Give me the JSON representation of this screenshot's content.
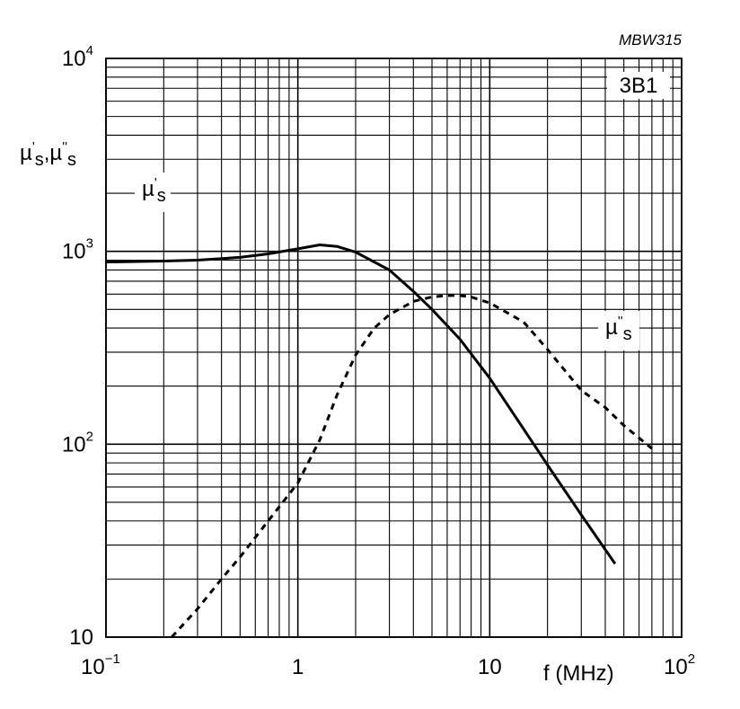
{
  "chart_data": {
    "type": "line",
    "reference": "MBW315",
    "material": "3B1",
    "xscale": "log",
    "yscale": "log",
    "xlim": [
      0.1,
      100
    ],
    "ylim": [
      10,
      10000
    ],
    "grid": true,
    "xlabel": "f  (MHz)",
    "ylabel": {
      "base": "µ",
      "sub1": "s",
      "sup1": "'",
      "sep": ",",
      "sub2": "s",
      "sup2": "''"
    },
    "x_ticks": [
      {
        "value": 0.1,
        "base": "10",
        "exp": "−1"
      },
      {
        "value": 1,
        "base": "1",
        "exp": ""
      },
      {
        "value": 10,
        "base": "10",
        "exp": ""
      },
      {
        "value": 100,
        "base": "10",
        "exp": "2"
      }
    ],
    "y_ticks": [
      {
        "value": 10,
        "base": "10",
        "exp": ""
      },
      {
        "value": 100,
        "base": "10",
        "exp": "2"
      },
      {
        "value": 1000,
        "base": "10",
        "exp": "3"
      },
      {
        "value": 10000,
        "base": "10",
        "exp": "4"
      }
    ],
    "series": [
      {
        "name": "µ's",
        "label": {
          "base": "µ",
          "sup": "'",
          "sub": "s"
        },
        "style": "solid",
        "x": [
          0.1,
          0.2,
          0.3,
          0.5,
          0.7,
          1.0,
          1.3,
          1.6,
          2.0,
          3.0,
          4.0,
          5.0,
          7.0,
          10,
          15,
          20,
          30,
          45
        ],
        "y": [
          880,
          890,
          900,
          930,
          970,
          1030,
          1080,
          1060,
          990,
          800,
          620,
          500,
          350,
          220,
          120,
          78,
          43,
          24
        ]
      },
      {
        "name": "µ''s",
        "label": {
          "base": "µ",
          "sup": "''",
          "sub": "s"
        },
        "style": "dashed",
        "x": [
          0.22,
          0.3,
          0.4,
          0.5,
          0.7,
          1.0,
          1.3,
          1.6,
          2.0,
          2.5,
          3.0,
          4.0,
          5.0,
          6.0,
          7.0,
          8.0,
          10,
          15,
          20,
          30,
          40,
          50,
          70
        ],
        "y": [
          10,
          14,
          20,
          26,
          40,
          63,
          105,
          180,
          290,
          400,
          470,
          550,
          580,
          590,
          590,
          580,
          540,
          430,
          310,
          190,
          155,
          125,
          95
        ]
      }
    ]
  }
}
